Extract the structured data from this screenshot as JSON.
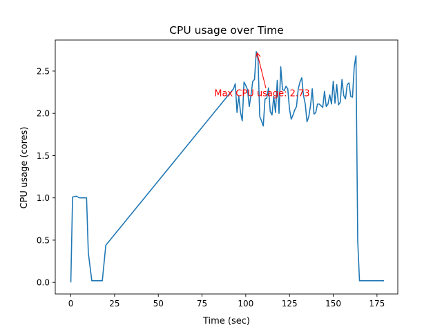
{
  "chart_data": {
    "type": "line",
    "title": "CPU usage over Time",
    "xlabel": "Time (sec)",
    "ylabel": "CPU usage (cores)",
    "xlim": [
      -8.9,
      186.9
    ],
    "ylim": [
      -0.137,
      2.867
    ],
    "xticks": [
      0,
      25,
      50,
      75,
      100,
      125,
      150,
      175
    ],
    "yticks": [
      0.0,
      0.5,
      1.0,
      1.5,
      2.0,
      2.5
    ],
    "xtick_labels": [
      "0",
      "25",
      "50",
      "75",
      "100",
      "125",
      "150",
      "175"
    ],
    "ytick_labels": [
      "0.0",
      "0.5",
      "1.0",
      "1.5",
      "2.0",
      "2.5"
    ],
    "grid": false,
    "series": [
      {
        "name": "CPU usage",
        "color": "#1f77b4",
        "x": [
          0,
          1,
          3,
          5,
          7,
          9,
          10,
          12,
          14,
          16,
          18,
          20,
          93,
          94,
          95,
          96,
          97,
          98,
          99,
          100,
          101,
          102,
          103,
          104,
          105,
          106,
          107,
          108,
          109,
          110,
          111,
          112,
          113,
          114,
          115,
          116,
          117,
          118,
          119,
          120,
          121,
          122,
          123,
          124,
          125,
          126,
          127,
          128,
          129,
          130,
          131,
          132,
          133,
          134,
          135,
          136,
          137,
          138,
          139,
          140,
          141,
          142,
          143,
          144,
          145,
          146,
          147,
          148,
          149,
          150,
          151,
          152,
          153,
          154,
          155,
          156,
          157,
          158,
          159,
          160,
          161,
          162,
          163,
          164,
          165,
          166,
          167,
          168,
          169,
          170,
          171,
          172,
          173,
          174,
          175,
          177,
          179
        ],
        "values": [
          0.0,
          1.01,
          1.02,
          1.0,
          1.0,
          1.0,
          0.35,
          0.02,
          0.02,
          0.02,
          0.02,
          0.44,
          2.29,
          2.35,
          2.01,
          2.2,
          2.01,
          1.91,
          2.37,
          2.33,
          2.28,
          2.08,
          2.22,
          2.38,
          2.4,
          2.73,
          2.64,
          1.96,
          1.91,
          1.85,
          2.17,
          2.18,
          2.3,
          2.02,
          1.98,
          2.2,
          2.01,
          2.39,
          2.0,
          2.55,
          2.28,
          2.27,
          2.32,
          2.29,
          2.05,
          1.93,
          1.98,
          2.04,
          2.08,
          2.29,
          2.37,
          2.42,
          2.21,
          2.11,
          1.9,
          1.96,
          2.09,
          2.29,
          1.99,
          2.01,
          2.11,
          2.11,
          2.09,
          2.07,
          2.26,
          2.08,
          2.11,
          2.22,
          2.11,
          2.38,
          2.12,
          2.34,
          2.1,
          2.13,
          2.4,
          2.21,
          2.17,
          2.34,
          2.36,
          2.2,
          2.19,
          2.55,
          2.68,
          0.49,
          0.02,
          0.02,
          0.02,
          0.02,
          0.02,
          0.02,
          0.02,
          0.02,
          0.02,
          0.02,
          0.02,
          0.02,
          0.02
        ]
      }
    ],
    "annotations": [
      {
        "text": "Max CPU usage: 2.73",
        "color": "#ff0000",
        "xy": [
          106.5,
          2.73
        ],
        "xytext": [
          82,
          2.2
        ]
      }
    ]
  }
}
